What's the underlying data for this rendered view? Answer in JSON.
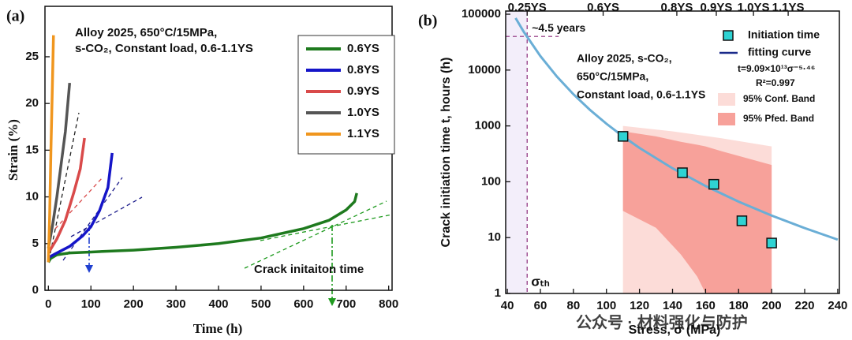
{
  "chart_data": [
    {
      "type": "line",
      "title": "(a)",
      "xlabel": "Time (h)",
      "ylabel": "Strain (%)",
      "xlim": [
        -8,
        808
      ],
      "ylim": [
        0,
        30.4
      ],
      "xticks": [
        0,
        100,
        200,
        300,
        400,
        500,
        600,
        700,
        800
      ],
      "yticks": [
        0,
        5,
        10,
        15,
        20,
        25
      ],
      "annotations": [
        "Alloy 2025, 650°C/15MPa,",
        "s-CO₂, Constant load, 0.6-1.1YS",
        "Crack initaiton time"
      ],
      "series": [
        {
          "name": "0.6YS",
          "color": "#1e7a1e",
          "x": [
            0,
            5,
            20,
            50,
            100,
            200,
            300,
            400,
            500,
            600,
            660,
            700,
            720,
            725
          ],
          "values": [
            3,
            3.4,
            3.8,
            4.0,
            4.1,
            4.3,
            4.6,
            5.0,
            5.6,
            6.6,
            7.5,
            8.6,
            9.5,
            10.4
          ]
        },
        {
          "name": "0.8YS",
          "color": "#1515c8",
          "x": [
            0,
            20,
            50,
            80,
            100,
            120,
            140,
            150
          ],
          "values": [
            3.5,
            4,
            4.7,
            5.8,
            6.8,
            8.5,
            11,
            14.7
          ]
        },
        {
          "name": "0.9YS",
          "color": "#d94a4a",
          "x": [
            0,
            20,
            40,
            60,
            75,
            85
          ],
          "values": [
            4,
            5.5,
            7.5,
            10.5,
            13,
            16.3
          ]
        },
        {
          "name": "1.0YS",
          "color": "#555555",
          "x": [
            0,
            10,
            20,
            30,
            40,
            50
          ],
          "values": [
            4.5,
            7,
            10,
            13.5,
            17,
            22.2
          ]
        },
        {
          "name": "1.1YS",
          "color": "#f0961e",
          "x": [
            0,
            3,
            6,
            9,
            12
          ],
          "values": [
            3,
            8,
            15,
            21,
            27.3
          ]
        }
      ]
    },
    {
      "type": "scatter",
      "title": "(b)",
      "xlabel": "Stress, σ (MPa)",
      "ylabel": "Crack initiation time t, hours (h)",
      "xlim": [
        39,
        241
      ],
      "ylim": [
        1,
        114000
      ],
      "log_y": true,
      "xticks": [
        40,
        60,
        80,
        100,
        120,
        140,
        160,
        180,
        200,
        220,
        240
      ],
      "yticks": [
        1,
        10,
        100,
        1000,
        10000,
        100000
      ],
      "x2ticks": [
        {
          "value": 52,
          "label": "0.25YS"
        },
        {
          "value": 98,
          "label": "0.6YS"
        },
        {
          "value": 142.6,
          "label": "0.8YS"
        },
        {
          "value": 166.5,
          "label": "0.9YS"
        },
        {
          "value": 189,
          "label": "1.0YS"
        },
        {
          "value": 210,
          "label": "1.1YS"
        }
      ],
      "annotations": [
        "Alloy 2025, s-CO₂,",
        "650°C/15MPa,",
        "Constant load, 0.6-1.1YS"
      ],
      "threshold": {
        "label": "σₜₕ",
        "x": 52,
        "y": 40000,
        "y_label": "~4.5 years",
        "color": "#8b2a7a"
      },
      "watermark": "公众号 · 材料强化与防护",
      "series": [
        {
          "name": "Initiation time",
          "color": "#2ed3d3",
          "x": [
            110,
            146,
            165,
            182,
            200
          ],
          "values": [
            650,
            145,
            90,
            20,
            8
          ]
        }
      ],
      "fit": {
        "name": "fitting curve",
        "color": "#6aaed6",
        "equation": "t=9.09×10¹³σ⁻⁵·⁴⁶",
        "r2": "R²=0.997",
        "x": [
          45,
          50,
          60,
          70,
          80,
          90,
          100,
          110,
          120,
          140,
          160,
          180,
          200,
          220,
          240
        ],
        "values": [
          85500,
          48100,
          17800,
          7660,
          3690,
          1940,
          1093,
          650,
          404,
          174,
          84,
          44,
          24.8,
          14.8,
          9.2
        ]
      },
      "bands": [
        {
          "name": "95% Conf. Band",
          "color": "#fcdcd8",
          "x": [
            110,
            140,
            170,
            200
          ],
          "upper": [
            1000,
            800,
            600,
            430
          ],
          "lower": [
            1,
            1,
            1,
            1
          ]
        },
        {
          "name": "95% Pfed. Band",
          "color": "#f7a19a",
          "x": [
            110,
            130,
            145,
            155,
            160,
            170,
            200
          ],
          "upper": [
            800,
            650,
            520,
            460,
            430,
            350,
            200
          ],
          "lower": [
            30,
            15,
            5,
            2,
            1,
            1,
            1
          ]
        }
      ]
    }
  ]
}
